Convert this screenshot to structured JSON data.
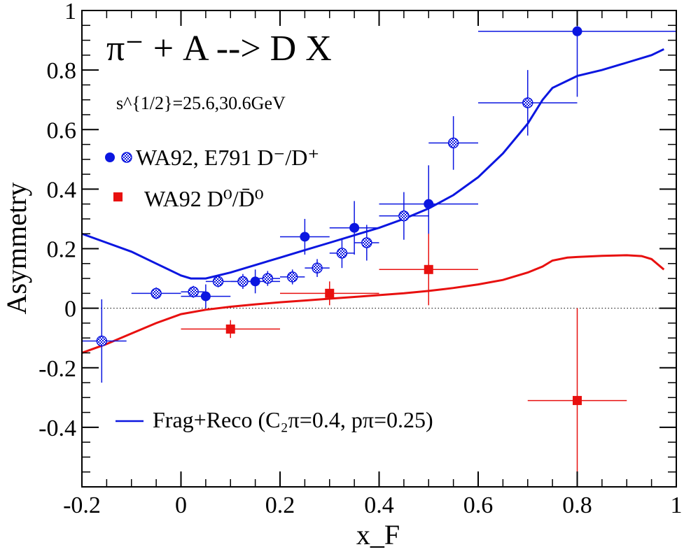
{
  "chart_data": {
    "type": "scatter",
    "title": "π⁻ + A --> D X",
    "subtitle": "s^{1/2}=25.6,30.6GeV",
    "xlabel": "x_F",
    "ylabel": "Asymmetry",
    "xlim": [
      -0.2,
      1.0
    ],
    "ylim": [
      -0.6,
      1.0
    ],
    "x_ticks": [
      "-0.2",
      "0",
      "0.2",
      "0.4",
      "0.6",
      "0.8",
      "1"
    ],
    "y_ticks": [
      "-0.4",
      "-0.2",
      "0",
      "0.2",
      "0.4",
      "0.6",
      "0.8",
      "1"
    ],
    "reference_line": {
      "y": 0,
      "style": "dotted"
    },
    "legend": {
      "wa92_e791": "WA92, E791 D⁻/D⁺",
      "wa92_d0": "WA92 D⁰/D̄⁰",
      "model": "Frag+Reco (C₂π=0.4, pπ=0.25)"
    },
    "series": [
      {
        "name": "WA92 D-/D+",
        "color": "#0b16e0",
        "marker": "filled-circle",
        "points": [
          {
            "x": 0.05,
            "y": 0.04,
            "xerr": 0.05,
            "yerr": 0.04
          },
          {
            "x": 0.15,
            "y": 0.09,
            "xerr": 0.05,
            "yerr": 0.04
          },
          {
            "x": 0.25,
            "y": 0.24,
            "xerr": 0.05,
            "yerr": 0.06
          },
          {
            "x": 0.35,
            "y": 0.27,
            "xerr": 0.05,
            "yerr": 0.09
          },
          {
            "x": 0.5,
            "y": 0.35,
            "xerr": 0.1,
            "yerr": 0.13
          },
          {
            "x": 0.8,
            "y": 0.93,
            "xerr": 0.2,
            "yerr": 0.22
          }
        ]
      },
      {
        "name": "E791 D-/D+",
        "color": "#0b16e0",
        "marker": "hatched-circle",
        "points": [
          {
            "x": -0.16,
            "y": -0.11,
            "xerr": 0.05,
            "yerr": 0.14
          },
          {
            "x": -0.05,
            "y": 0.05,
            "xerr": 0.05,
            "yerr": 0.02
          },
          {
            "x": 0.025,
            "y": 0.055,
            "xerr": 0.025,
            "yerr": 0.02
          },
          {
            "x": 0.075,
            "y": 0.09,
            "xerr": 0.025,
            "yerr": 0.02
          },
          {
            "x": 0.125,
            "y": 0.09,
            "xerr": 0.025,
            "yerr": 0.025
          },
          {
            "x": 0.175,
            "y": 0.1,
            "xerr": 0.025,
            "yerr": 0.025
          },
          {
            "x": 0.225,
            "y": 0.105,
            "xerr": 0.025,
            "yerr": 0.025
          },
          {
            "x": 0.275,
            "y": 0.135,
            "xerr": 0.025,
            "yerr": 0.03
          },
          {
            "x": 0.325,
            "y": 0.185,
            "xerr": 0.025,
            "yerr": 0.05
          },
          {
            "x": 0.375,
            "y": 0.22,
            "xerr": 0.025,
            "yerr": 0.06
          },
          {
            "x": 0.45,
            "y": 0.31,
            "xerr": 0.05,
            "yerr": 0.08
          },
          {
            "x": 0.55,
            "y": 0.555,
            "xerr": 0.05,
            "yerr": 0.09
          },
          {
            "x": 0.7,
            "y": 0.69,
            "xerr": 0.1,
            "yerr": 0.11
          }
        ]
      },
      {
        "name": "WA92 D0/D0bar",
        "color": "#e8100f",
        "marker": "filled-square",
        "points": [
          {
            "x": 0.1,
            "y": -0.07,
            "xerr": 0.1,
            "yerr": 0.03
          },
          {
            "x": 0.3,
            "y": 0.05,
            "xerr": 0.1,
            "yerr": 0.04
          },
          {
            "x": 0.5,
            "y": 0.13,
            "xerr": 0.1,
            "yerr": 0.12
          },
          {
            "x": 0.8,
            "y": -0.31,
            "xerr": 0.1,
            "yerr": 0.31
          }
        ]
      }
    ],
    "curves": [
      {
        "name": "Frag+Reco D-/D+",
        "color": "#0b16e0",
        "x": [
          -0.2,
          -0.15,
          -0.1,
          -0.05,
          0.0,
          0.02,
          0.05,
          0.1,
          0.15,
          0.2,
          0.25,
          0.3,
          0.35,
          0.4,
          0.45,
          0.5,
          0.55,
          0.6,
          0.65,
          0.7,
          0.73,
          0.75,
          0.8,
          0.85,
          0.9,
          0.95,
          0.975
        ],
        "y": [
          0.25,
          0.22,
          0.19,
          0.15,
          0.11,
          0.1,
          0.1,
          0.12,
          0.145,
          0.17,
          0.195,
          0.22,
          0.245,
          0.27,
          0.3,
          0.335,
          0.38,
          0.44,
          0.52,
          0.62,
          0.7,
          0.74,
          0.78,
          0.8,
          0.825,
          0.85,
          0.87
        ]
      },
      {
        "name": "Frag+Reco D0/D0bar",
        "color": "#e8100f",
        "x": [
          -0.2,
          -0.15,
          -0.1,
          -0.05,
          0.0,
          0.05,
          0.1,
          0.15,
          0.2,
          0.25,
          0.3,
          0.35,
          0.4,
          0.45,
          0.5,
          0.55,
          0.6,
          0.65,
          0.7,
          0.73,
          0.75,
          0.78,
          0.8,
          0.85,
          0.9,
          0.93,
          0.95,
          0.975
        ],
        "y": [
          -0.15,
          -0.12,
          -0.085,
          -0.05,
          -0.02,
          -0.005,
          0.005,
          0.013,
          0.02,
          0.026,
          0.032,
          0.038,
          0.044,
          0.05,
          0.058,
          0.068,
          0.08,
          0.095,
          0.12,
          0.14,
          0.16,
          0.17,
          0.172,
          0.176,
          0.178,
          0.175,
          0.165,
          0.13
        ]
      }
    ]
  }
}
